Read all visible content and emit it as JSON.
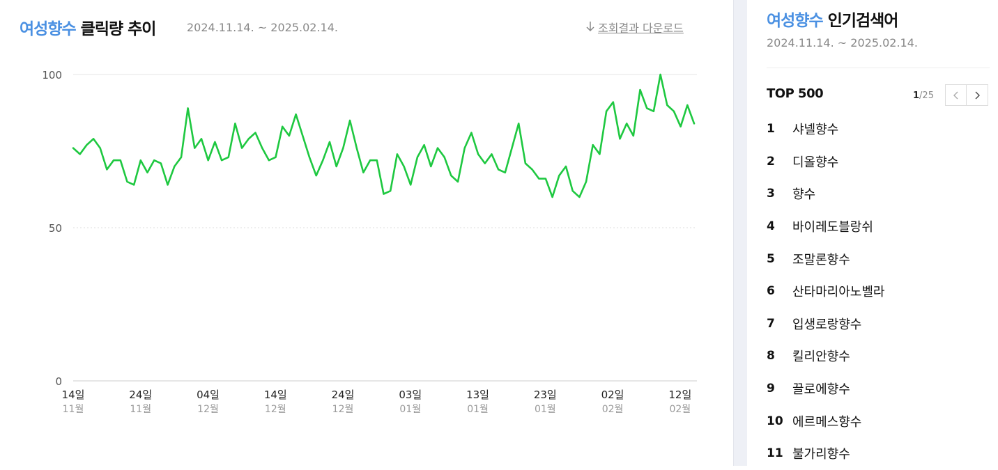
{
  "header": {
    "keyword": "여성향수",
    "title_suffix": "클릭량 추이",
    "date_range": "2024.11.14. ~ 2025.02.14.",
    "download_label": "조회결과 다운로드",
    "download_icon": "download-arrow-icon"
  },
  "chart_data": {
    "type": "line",
    "title": "여성향수 클릭량 추이",
    "ylim": [
      0,
      100
    ],
    "yticks": [
      "0",
      "50",
      "100"
    ],
    "grid": true,
    "line_color": "#1ec840",
    "x_ticks": [
      {
        "day": "14일",
        "month": "11월"
      },
      {
        "day": "24일",
        "month": "11월"
      },
      {
        "day": "04일",
        "month": "12월"
      },
      {
        "day": "14일",
        "month": "12월"
      },
      {
        "day": "24일",
        "month": "12월"
      },
      {
        "day": "03일",
        "month": "01월"
      },
      {
        "day": "13일",
        "month": "01월"
      },
      {
        "day": "23일",
        "month": "01월"
      },
      {
        "day": "02일",
        "month": "02월"
      },
      {
        "day": "12일",
        "month": "02월"
      }
    ],
    "series": [
      {
        "values": [
          76,
          74,
          77,
          79,
          76,
          69,
          72,
          72,
          65,
          64,
          72,
          68,
          72,
          71,
          64,
          70,
          73,
          89,
          76,
          79,
          72,
          78,
          72,
          73,
          84,
          76,
          79,
          81,
          76,
          72,
          73,
          83,
          80,
          87,
          80,
          73,
          67,
          72,
          78,
          70,
          76,
          85,
          76,
          68,
          72,
          72,
          61,
          62,
          74,
          70,
          64,
          73,
          77,
          70,
          76,
          73,
          67,
          65,
          76,
          81,
          74,
          71,
          74,
          69,
          68,
          76,
          84,
          71,
          69,
          66,
          66,
          60,
          67,
          70,
          62,
          60,
          65,
          77,
          74,
          88,
          91,
          79,
          84,
          80,
          95,
          89,
          88,
          100,
          90,
          88,
          83,
          90,
          84
        ]
      }
    ]
  },
  "sidebar": {
    "keyword": "여성향수",
    "title_suffix": "인기검색어",
    "date_range": "2024.11.14. ~ 2025.02.14.",
    "top_label": "TOP 500",
    "page_current": "1",
    "page_total": "/25",
    "prev_icon": "chevron-left-icon",
    "next_icon": "chevron-right-icon",
    "items": [
      {
        "rank": "1",
        "label": "샤넬향수"
      },
      {
        "rank": "2",
        "label": "디올향수"
      },
      {
        "rank": "3",
        "label": "향수"
      },
      {
        "rank": "4",
        "label": "바이레도블랑쉬"
      },
      {
        "rank": "5",
        "label": "조말론향수"
      },
      {
        "rank": "6",
        "label": "산타마리아노벨라"
      },
      {
        "rank": "7",
        "label": "입생로랑향수"
      },
      {
        "rank": "8",
        "label": "킬리안향수"
      },
      {
        "rank": "9",
        "label": "끌로에향수"
      },
      {
        "rank": "10",
        "label": "에르메스향수"
      },
      {
        "rank": "11",
        "label": "불가리향수"
      }
    ]
  }
}
